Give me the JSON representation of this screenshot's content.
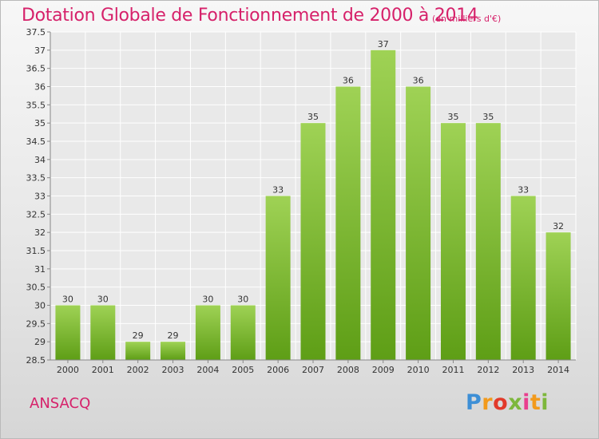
{
  "page": {
    "title": "Dotation Globale de Fonctionnement de 2000 à 2014",
    "subtitle": "(en milliers d'€)",
    "commune": "ANSACQ",
    "logo_text": "Proxiti"
  },
  "colors": {
    "title": "#d6216a",
    "bar_top": "#9fd255",
    "bar_bottom": "#5e9e16",
    "grid": "#ffffff",
    "axis": "#888888"
  },
  "chart_data": {
    "type": "bar",
    "title": "Dotation Globale de Fonctionnement de 2000 à 2014",
    "subtitle": "(en milliers d'€)",
    "xlabel": "",
    "ylabel": "",
    "categories": [
      "2000",
      "2001",
      "2002",
      "2003",
      "2004",
      "2005",
      "2006",
      "2007",
      "2008",
      "2009",
      "2010",
      "2011",
      "2012",
      "2013",
      "2014"
    ],
    "values": [
      30,
      30,
      29,
      29,
      30,
      30,
      33,
      35,
      36,
      37,
      36,
      35,
      35,
      33,
      32
    ],
    "value_labels": [
      "30",
      "30",
      "29",
      "29",
      "30",
      "30",
      "33",
      "35",
      "36",
      "37",
      "36",
      "35",
      "35",
      "33",
      "32"
    ],
    "ylim": [
      28.5,
      37.5
    ],
    "yticks": [
      28.5,
      29,
      29.5,
      30,
      30.5,
      31,
      31.5,
      32,
      32.5,
      33,
      33.5,
      34,
      34.5,
      35,
      35.5,
      36,
      36.5,
      37,
      37.5
    ],
    "ytick_labels": [
      "28.5",
      "29",
      "29.5",
      "30",
      "30.5",
      "31",
      "31.5",
      "32",
      "32.5",
      "33",
      "33.5",
      "34",
      "34.5",
      "35",
      "35.5",
      "36",
      "36.5",
      "37",
      "37.5"
    ],
    "grid": true,
    "legend": "none"
  }
}
